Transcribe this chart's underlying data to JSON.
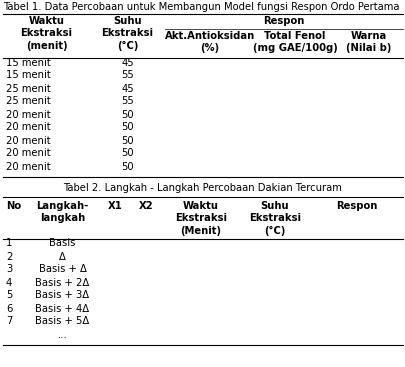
{
  "table1_title": "Tabel 1. Data Percobaan untuk Membangun Model fungsi Respon Ordo Pertama",
  "table1_data": [
    [
      "15 menit",
      "45"
    ],
    [
      "15 menit",
      "55"
    ],
    [
      "25 menit",
      "45"
    ],
    [
      "25 menit",
      "55"
    ],
    [
      "20 menit",
      "50"
    ],
    [
      "20 menit",
      "50"
    ],
    [
      "20 menit",
      "50"
    ],
    [
      "20 menit",
      "50"
    ],
    [
      "20 menit",
      "50"
    ]
  ],
  "table2_title": "Tabel 2. Langkah - Langkah Percobaan Dakian Tercuram",
  "table2_data": [
    [
      "1",
      "Basis"
    ],
    [
      "2",
      "Δ"
    ],
    [
      "3",
      "Basis + Δ"
    ],
    [
      "4",
      "Basis + 2Δ"
    ],
    [
      "5",
      "Basis + 3Δ"
    ],
    [
      "6",
      "Basis + 4Δ"
    ],
    [
      "7",
      "Basis + 5Δ"
    ],
    [
      "",
      "..."
    ]
  ],
  "bg_color": "#ffffff",
  "text_color": "#000000",
  "font_size": 7.2,
  "title_font_size": 7.2
}
